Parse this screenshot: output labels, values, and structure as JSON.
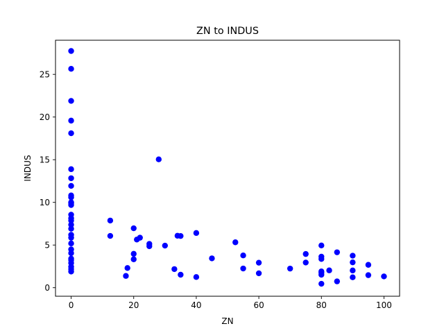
{
  "chart_data": {
    "type": "scatter",
    "title": "ZN to INDUS",
    "xlabel": "ZN",
    "ylabel": "INDUS",
    "xlim": [
      -5,
      105
    ],
    "ylim": [
      -1,
      29
    ],
    "xticks": [
      0,
      20,
      40,
      60,
      80,
      100
    ],
    "yticks": [
      0,
      5,
      10,
      15,
      20,
      25
    ],
    "grid": false,
    "marker_color": "#0000ff",
    "points": [
      [
        0,
        27.74
      ],
      [
        0,
        25.65
      ],
      [
        0,
        21.89
      ],
      [
        0,
        19.58
      ],
      [
        0,
        18.1
      ],
      [
        0,
        13.89
      ],
      [
        0,
        12.83
      ],
      [
        0,
        11.93
      ],
      [
        0,
        10.81
      ],
      [
        0,
        10.59
      ],
      [
        0,
        10.01
      ],
      [
        0,
        9.69
      ],
      [
        0,
        9.9
      ],
      [
        0,
        8.56
      ],
      [
        0,
        8.14
      ],
      [
        0,
        7.87
      ],
      [
        0,
        7.38
      ],
      [
        0,
        6.91
      ],
      [
        0,
        6.2
      ],
      [
        0,
        5.86
      ],
      [
        0,
        5.19
      ],
      [
        0,
        4.49
      ],
      [
        0,
        4.05
      ],
      [
        0,
        3.41
      ],
      [
        0,
        3.24
      ],
      [
        0,
        2.89
      ],
      [
        0,
        2.46
      ],
      [
        0,
        2.18
      ],
      [
        0,
        1.89
      ],
      [
        12.5,
        7.87
      ],
      [
        12.5,
        6.07
      ],
      [
        17.5,
        1.38
      ],
      [
        18,
        2.31
      ],
      [
        20,
        6.96
      ],
      [
        20,
        3.97
      ],
      [
        20,
        3.33
      ],
      [
        21,
        5.64
      ],
      [
        22,
        5.86
      ],
      [
        25,
        5.13
      ],
      [
        25,
        4.86
      ],
      [
        28,
        15.04
      ],
      [
        30,
        4.93
      ],
      [
        33,
        2.18
      ],
      [
        34,
        6.09
      ],
      [
        35,
        6.06
      ],
      [
        35,
        1.52
      ],
      [
        40,
        6.41
      ],
      [
        40,
        1.25
      ],
      [
        45,
        3.44
      ],
      [
        52.5,
        5.32
      ],
      [
        55,
        3.78
      ],
      [
        55,
        2.25
      ],
      [
        60,
        2.93
      ],
      [
        60,
        1.69
      ],
      [
        70,
        2.24
      ],
      [
        75,
        3.95
      ],
      [
        75,
        2.95
      ],
      [
        80,
        4.95
      ],
      [
        80,
        3.64
      ],
      [
        80,
        3.37
      ],
      [
        80,
        1.91
      ],
      [
        80,
        1.76
      ],
      [
        80,
        1.52
      ],
      [
        80,
        0.46
      ],
      [
        82.5,
        2.03
      ],
      [
        85,
        4.15
      ],
      [
        85,
        0.74
      ],
      [
        90,
        3.75
      ],
      [
        90,
        2.97
      ],
      [
        90,
        2.02
      ],
      [
        90,
        1.22
      ],
      [
        95,
        2.68
      ],
      [
        95,
        1.47
      ],
      [
        100,
        1.32
      ]
    ]
  }
}
